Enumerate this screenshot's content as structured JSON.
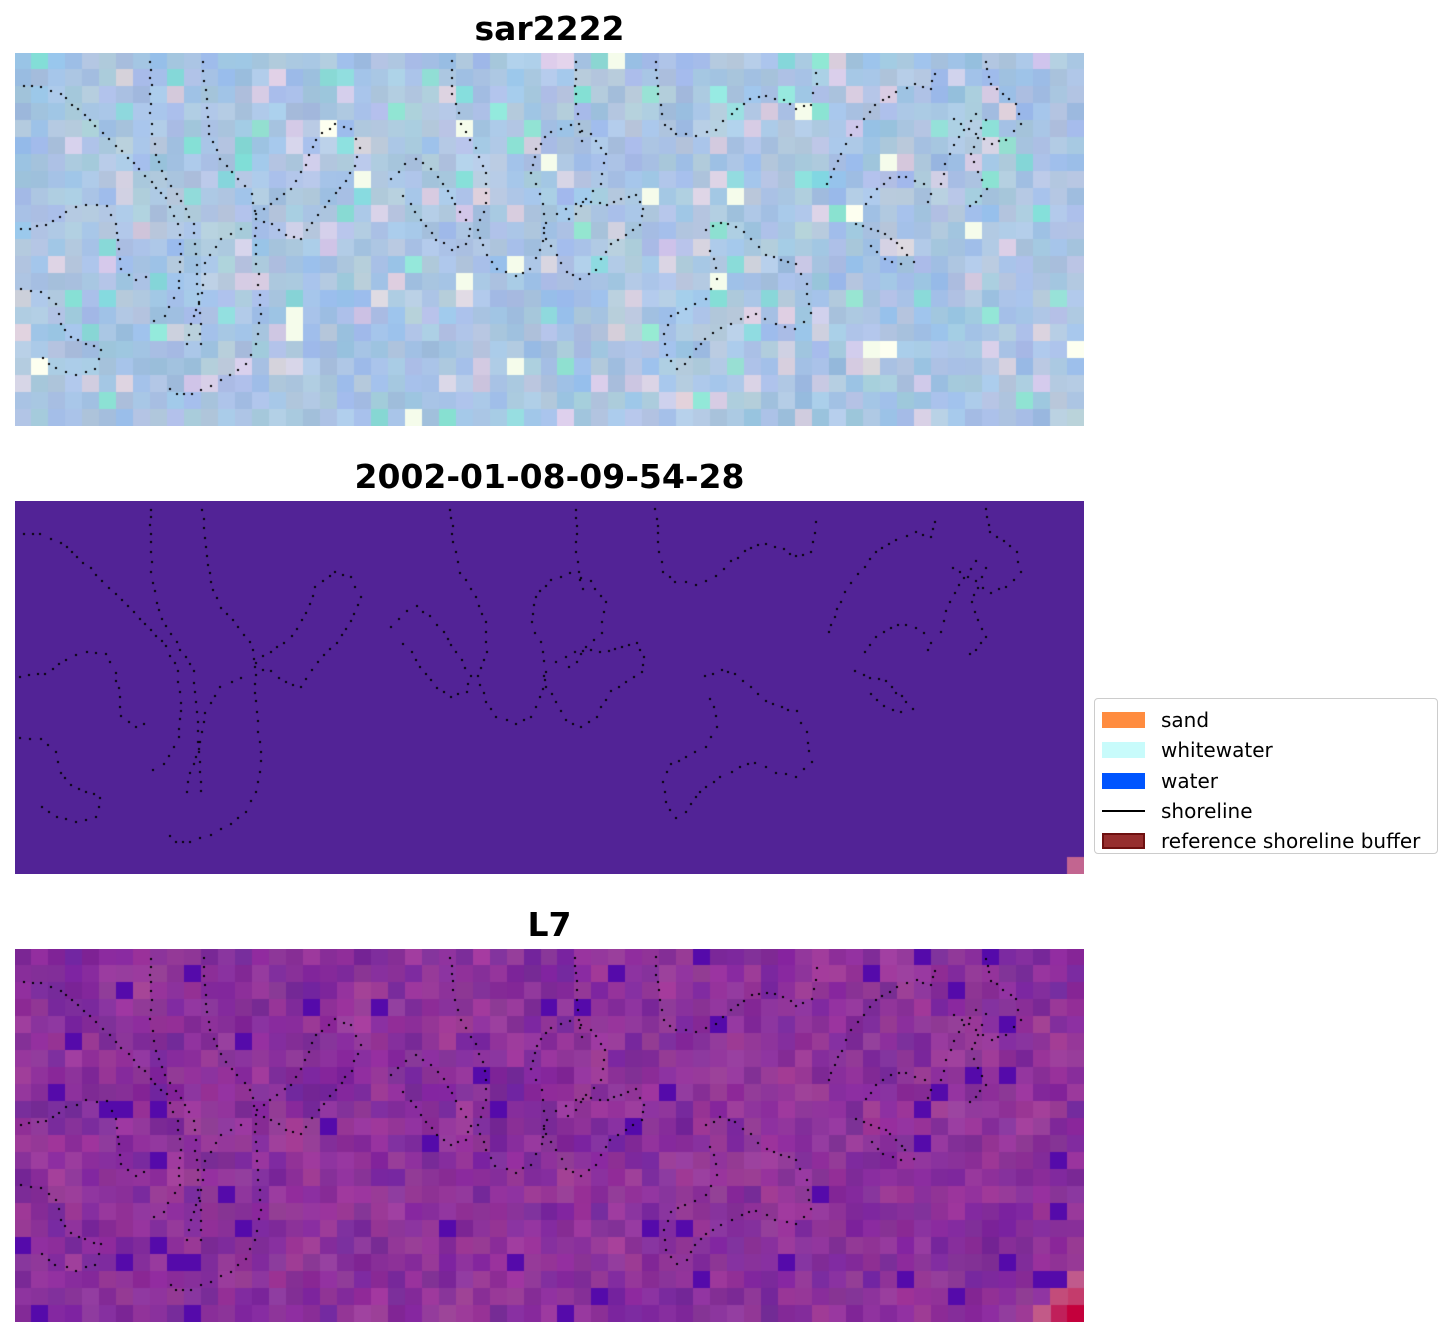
{
  "panels": [
    {
      "title": "sar2222",
      "style": "rgb"
    },
    {
      "title": "2002-01-08-09-54-28",
      "style": "classified"
    },
    {
      "title": "L7",
      "style": "index"
    }
  ],
  "legend": {
    "items": [
      {
        "label": "sand",
        "color": "#ff8c3f",
        "kind": "patch"
      },
      {
        "label": "whitewater",
        "color": "#c8fbfb",
        "kind": "patch"
      },
      {
        "label": "water",
        "color": "#0055ff",
        "kind": "patch"
      },
      {
        "label": "shoreline",
        "color": "#000000",
        "kind": "line"
      },
      {
        "label": "reference shoreline buffer",
        "color": "#962e2e",
        "kind": "patch",
        "edge": "#6e1010"
      }
    ]
  },
  "colors": {
    "classified_background": "#522396",
    "classified_corner": "#c26590",
    "shoreline": "#000000"
  }
}
